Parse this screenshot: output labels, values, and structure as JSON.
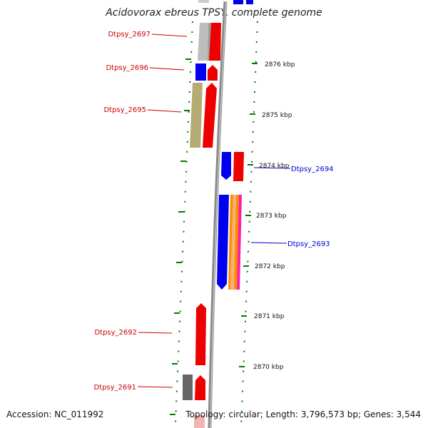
{
  "title": "Acidovorax ebreus TPSY, complete genome",
  "footer": {
    "accession": "Accession: NC_011992",
    "topology": "Topology: circular; Length: 3,796,573 bp; Genes: 3,544"
  },
  "kbp_labels": [
    "2876 kbp",
    "2875 kbp",
    "2874 kbp",
    "2873 kbp",
    "2872 kbp",
    "2871 kbp",
    "2870 kbp"
  ],
  "genes": [
    {
      "label": "Dtpsy_2697",
      "color": "#cc0000"
    },
    {
      "label": "Dtpsy_2696",
      "color": "#cc0000"
    },
    {
      "label": "Dtpsy_2695",
      "color": "#cc0000"
    },
    {
      "label": "Dtpsy_2694",
      "color": "#0000cc"
    },
    {
      "label": "Dtpsy_2693",
      "color": "#0000cc"
    },
    {
      "label": "Dtpsy_2692",
      "color": "#cc0000"
    },
    {
      "label": "Dtpsy_2691",
      "color": "#cc0000"
    }
  ],
  "colors": {
    "forward": "#ee0000",
    "reverse": "#0000ee",
    "backbone": "#8a8a8a",
    "ticks": "#007a00",
    "olive": "#b5ac74",
    "grey": "#bdbdbd",
    "dark_grey": "#666666",
    "orange": "#ff8c00",
    "magenta": "#ff1aa8"
  }
}
